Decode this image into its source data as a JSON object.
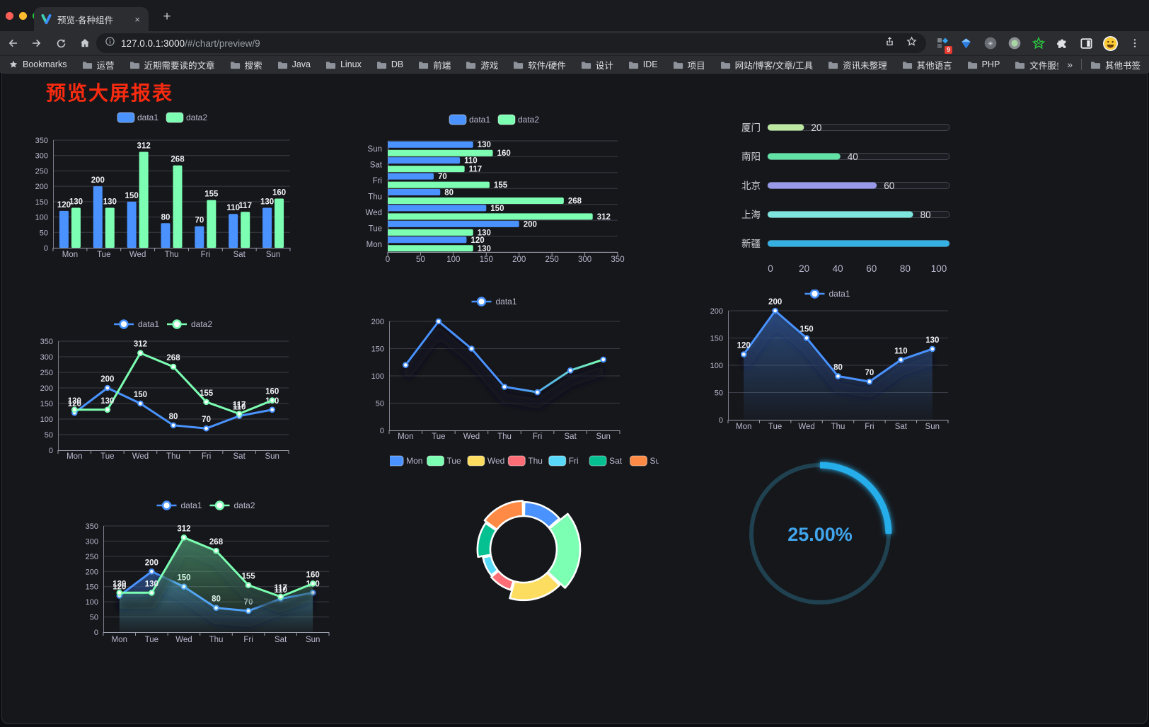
{
  "browser": {
    "tab_title": "预览-各种组件",
    "tab_close": "×",
    "new_tab": "+",
    "url_host": "127.0.0.1:3000",
    "url_path": "/#/chart/preview/9",
    "bookmarks_label": "Bookmarks",
    "bookmark_folders": [
      "运营",
      "近期需要读的文章",
      "搜索",
      "Java",
      "Linux",
      "DB",
      "前端",
      "游戏",
      "软件/硬件",
      "设计",
      "IDE",
      "项目",
      "网站/博客/文章/工具",
      "资讯未整理",
      "其他语言",
      "PHP",
      "文件服务器"
    ],
    "overflow_chevron": "»",
    "other_bookmarks": "其他书签",
    "extension_badge": "9"
  },
  "page": {
    "title": "预览大屏报表",
    "title_color": "#f92b10"
  },
  "palette": {
    "blue": "#4992ff",
    "green": "#7cffb2",
    "yellow": "#fddd60",
    "red": "#ff6e76",
    "lightblue": "#58d9f9",
    "teal": "#05c091",
    "orange": "#ff8a45",
    "axis_text": "#b9b8ce",
    "value_text": "#eef0f4",
    "grid": "#3a3d45"
  },
  "chart_data": [
    {
      "id": "c1",
      "type": "bar",
      "categories": [
        "Mon",
        "Tue",
        "Wed",
        "Thu",
        "Fri",
        "Sat",
        "Sun"
      ],
      "series": [
        {
          "name": "data1",
          "color": "#4992ff",
          "values": [
            120,
            200,
            150,
            80,
            70,
            110,
            130
          ]
        },
        {
          "name": "data2",
          "color": "#7cffb2",
          "values": [
            130,
            130,
            312,
            268,
            155,
            117,
            160
          ]
        }
      ],
      "ylim": [
        0,
        350
      ],
      "tick_step": 50,
      "legend_position": "top",
      "grid": true
    },
    {
      "id": "c2",
      "type": "bar-horizontal",
      "categories": [
        "Mon",
        "Tue",
        "Wed",
        "Thu",
        "Fri",
        "Sat",
        "Sun"
      ],
      "series": [
        {
          "name": "data1",
          "color": "#4992ff",
          "values": [
            120,
            200,
            150,
            80,
            70,
            110,
            130
          ]
        },
        {
          "name": "data2",
          "color": "#7cffb2",
          "values": [
            130,
            130,
            312,
            268,
            155,
            117,
            160
          ]
        }
      ],
      "xlim": [
        0,
        350
      ],
      "tick_step": 50,
      "legend_position": "top"
    },
    {
      "id": "c3",
      "type": "progress",
      "max": 100,
      "axis_ticks": [
        0,
        20,
        40,
        60,
        80,
        100
      ],
      "items": [
        {
          "label": "厦门",
          "value": 20,
          "color": "#bce8a1"
        },
        {
          "label": "南阳",
          "value": 40,
          "color": "#61e2a4"
        },
        {
          "label": "北京",
          "value": 60,
          "color": "#989ae9"
        },
        {
          "label": "上海",
          "value": 80,
          "color": "#7ee4de"
        },
        {
          "label": "新疆",
          "value": 100,
          "color": "#34b0e3"
        }
      ]
    },
    {
      "id": "c4",
      "type": "line",
      "categories": [
        "Mon",
        "Tue",
        "Wed",
        "Thu",
        "Fri",
        "Sat",
        "Sun"
      ],
      "series": [
        {
          "name": "data1",
          "color": "#4992ff",
          "values": [
            120,
            200,
            150,
            80,
            70,
            110,
            130
          ]
        },
        {
          "name": "data2",
          "color": "#7cffb2",
          "values": [
            130,
            130,
            312,
            268,
            155,
            117,
            160
          ]
        }
      ],
      "ylim": [
        0,
        350
      ],
      "tick_step": 50,
      "show_labels": true,
      "shadow": false
    },
    {
      "id": "c5",
      "type": "line",
      "categories": [
        "Mon",
        "Tue",
        "Wed",
        "Thu",
        "Fri",
        "Sat",
        "Sun"
      ],
      "series": [
        {
          "name": "data1",
          "color": "#4992ff",
          "gradient_to": "#7cffb2",
          "values": [
            120,
            200,
            150,
            80,
            70,
            110,
            130
          ]
        }
      ],
      "ylim": [
        0,
        200
      ],
      "tick_step": 50,
      "show_labels": false,
      "shadow": true
    },
    {
      "id": "c6",
      "type": "line",
      "categories": [
        "Mon",
        "Tue",
        "Wed",
        "Thu",
        "Fri",
        "Sat",
        "Sun"
      ],
      "series": [
        {
          "name": "data1",
          "color": "#4992ff",
          "area": true,
          "values": [
            120,
            200,
            150,
            80,
            70,
            110,
            130
          ]
        }
      ],
      "ylim": [
        0,
        200
      ],
      "tick_step": 50,
      "show_labels": true,
      "shadow": true
    },
    {
      "id": "c7",
      "type": "line",
      "categories": [
        "Mon",
        "Tue",
        "Wed",
        "Thu",
        "Fri",
        "Sat",
        "Sun"
      ],
      "series": [
        {
          "name": "data1",
          "color": "#4992ff",
          "area": true,
          "values": [
            120,
            200,
            150,
            80,
            70,
            110,
            130
          ]
        },
        {
          "name": "data2",
          "color": "#7cffb2",
          "area": true,
          "values": [
            130,
            130,
            312,
            268,
            155,
            117,
            160
          ]
        }
      ],
      "ylim": [
        0,
        350
      ],
      "tick_step": 50,
      "show_labels": true,
      "shadow": true
    },
    {
      "id": "c8",
      "type": "rose-donut",
      "legend": [
        "Mon",
        "Tue",
        "Wed",
        "Thu",
        "Fri",
        "Sat",
        "Sun"
      ],
      "values": [
        120,
        200,
        150,
        80,
        70,
        110,
        130
      ],
      "colors": [
        "#4992ff",
        "#7cffb2",
        "#fddd60",
        "#ff6e76",
        "#58d9f9",
        "#05c091",
        "#ff8a45"
      ]
    },
    {
      "id": "c9",
      "type": "gauge",
      "percent": 25,
      "display": "25.00%",
      "progress_color": "#27aeea",
      "track_color": "#1f4150",
      "text_color": "#41a5ec"
    }
  ]
}
